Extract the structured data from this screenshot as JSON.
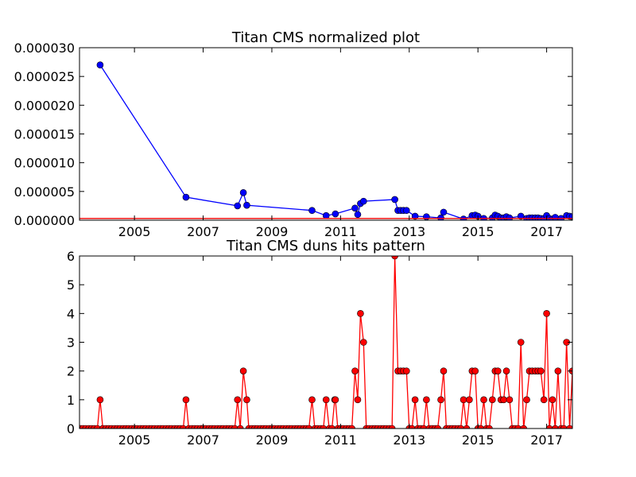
{
  "chart_data": [
    {
      "type": "line",
      "title": "Titan CMS normalized plot",
      "xlabel": "",
      "ylabel": "",
      "xlim": [
        2003.4,
        2017.75
      ],
      "ylim": [
        0,
        3e-05
      ],
      "x_ticks": [
        2005,
        2007,
        2009,
        2011,
        2013,
        2015,
        2017
      ],
      "x_tick_labels": [
        "2005",
        "2007",
        "2009",
        "2011",
        "2013",
        "2015",
        "2017"
      ],
      "y_ticks": [
        0,
        5e-06,
        1e-05,
        1.5e-05,
        2e-05,
        2.5e-05,
        3e-05
      ],
      "y_tick_labels": [
        "0.000000",
        "0.000005",
        "0.000010",
        "0.000015",
        "0.000020",
        "0.000025",
        "0.000030"
      ],
      "grid": false,
      "colors": {
        "series": "#0000ff",
        "trend": "#ff0000"
      },
      "series": [
        {
          "marker": "circle",
          "points": [
            [
              2004.0,
              2.7e-05
            ],
            [
              2006.5,
              4e-06
            ],
            [
              2008.0,
              2.5e-06
            ],
            [
              2008.17,
              4.8e-06
            ],
            [
              2008.27,
              2.6e-06
            ],
            [
              2010.17,
              1.7e-06
            ],
            [
              2010.58,
              8e-07
            ],
            [
              2010.85,
              1.1e-06
            ],
            [
              2011.42,
              2.1e-06
            ],
            [
              2011.5,
              1e-06
            ],
            [
              2011.58,
              2.9e-06
            ],
            [
              2011.67,
              3.3e-06
            ],
            [
              2012.58,
              3.6e-06
            ],
            [
              2012.67,
              1.7e-06
            ],
            [
              2012.75,
              1.7e-06
            ],
            [
              2012.83,
              1.7e-06
            ],
            [
              2012.92,
              1.7e-06
            ],
            [
              2013.17,
              7e-07
            ],
            [
              2013.5,
              6e-07
            ],
            [
              2013.92,
              4e-07
            ],
            [
              2014.0,
              1.4e-06
            ],
            [
              2014.58,
              2e-07
            ],
            [
              2014.83,
              8e-07
            ],
            [
              2014.92,
              9e-07
            ],
            [
              2015.0,
              7e-07
            ],
            [
              2015.17,
              3e-07
            ],
            [
              2015.42,
              4e-07
            ],
            [
              2015.5,
              9e-07
            ],
            [
              2015.58,
              7e-07
            ],
            [
              2015.67,
              4e-07
            ],
            [
              2015.75,
              4e-07
            ],
            [
              2015.83,
              6e-07
            ],
            [
              2015.92,
              4e-07
            ],
            [
              2016.25,
              7e-07
            ],
            [
              2016.42,
              3e-07
            ],
            [
              2016.5,
              4e-07
            ],
            [
              2016.58,
              4e-07
            ],
            [
              2016.67,
              4e-07
            ],
            [
              2016.75,
              4e-07
            ],
            [
              2016.83,
              3e-07
            ],
            [
              2016.92,
              3e-07
            ],
            [
              2017.0,
              8e-07
            ],
            [
              2017.08,
              3e-07
            ],
            [
              2017.17,
              2e-07
            ],
            [
              2017.25,
              5e-07
            ],
            [
              2017.42,
              3e-07
            ],
            [
              2017.58,
              8e-07
            ],
            [
              2017.67,
              7e-07
            ],
            [
              2017.75,
              6e-07
            ]
          ]
        },
        {
          "marker": "none",
          "points": [
            [
              2003.4,
              3e-07
            ],
            [
              2013.0,
              3e-07
            ],
            [
              2017.75,
              3e-07
            ]
          ]
        }
      ]
    },
    {
      "type": "line",
      "title": "Titan CMS duns hits pattern",
      "xlabel": "",
      "ylabel": "",
      "xlim": [
        2003.4,
        2017.75
      ],
      "ylim": [
        0,
        6
      ],
      "x_ticks": [
        2005,
        2007,
        2009,
        2011,
        2013,
        2015,
        2017
      ],
      "x_tick_labels": [
        "2005",
        "2007",
        "2009",
        "2011",
        "2013",
        "2015",
        "2017"
      ],
      "y_ticks": [
        0,
        1,
        2,
        3,
        4,
        5,
        6
      ],
      "y_tick_labels": [
        "0",
        "1",
        "2",
        "3",
        "4",
        "5",
        "6"
      ],
      "grid": false,
      "colors": {
        "series": "#ff0000"
      },
      "series": [
        {
          "marker": "circle",
          "points": [
            [
              2003.42,
              0
            ],
            [
              2003.5,
              0
            ],
            [
              2003.58,
              0
            ],
            [
              2003.67,
              0
            ],
            [
              2003.75,
              0
            ],
            [
              2003.83,
              0
            ],
            [
              2003.92,
              0
            ],
            [
              2004.0,
              1
            ],
            [
              2004.08,
              0
            ],
            [
              2004.17,
              0
            ],
            [
              2004.25,
              0
            ],
            [
              2004.33,
              0
            ],
            [
              2004.42,
              0
            ],
            [
              2004.5,
              0
            ],
            [
              2004.58,
              0
            ],
            [
              2004.67,
              0
            ],
            [
              2004.75,
              0
            ],
            [
              2004.83,
              0
            ],
            [
              2004.92,
              0
            ],
            [
              2005.0,
              0
            ],
            [
              2005.08,
              0
            ],
            [
              2005.17,
              0
            ],
            [
              2005.25,
              0
            ],
            [
              2005.33,
              0
            ],
            [
              2005.42,
              0
            ],
            [
              2005.5,
              0
            ],
            [
              2005.58,
              0
            ],
            [
              2005.67,
              0
            ],
            [
              2005.75,
              0
            ],
            [
              2005.83,
              0
            ],
            [
              2005.92,
              0
            ],
            [
              2006.0,
              0
            ],
            [
              2006.08,
              0
            ],
            [
              2006.17,
              0
            ],
            [
              2006.25,
              0
            ],
            [
              2006.33,
              0
            ],
            [
              2006.42,
              0
            ],
            [
              2006.5,
              1
            ],
            [
              2006.58,
              0
            ],
            [
              2006.67,
              0
            ],
            [
              2006.75,
              0
            ],
            [
              2006.83,
              0
            ],
            [
              2006.92,
              0
            ],
            [
              2007.0,
              0
            ],
            [
              2007.08,
              0
            ],
            [
              2007.17,
              0
            ],
            [
              2007.25,
              0
            ],
            [
              2007.33,
              0
            ],
            [
              2007.42,
              0
            ],
            [
              2007.5,
              0
            ],
            [
              2007.58,
              0
            ],
            [
              2007.67,
              0
            ],
            [
              2007.75,
              0
            ],
            [
              2007.83,
              0
            ],
            [
              2007.92,
              0
            ],
            [
              2008.0,
              1
            ],
            [
              2008.08,
              0
            ],
            [
              2008.17,
              2
            ],
            [
              2008.27,
              1
            ],
            [
              2008.33,
              0
            ],
            [
              2008.42,
              0
            ],
            [
              2008.5,
              0
            ],
            [
              2008.58,
              0
            ],
            [
              2008.67,
              0
            ],
            [
              2008.75,
              0
            ],
            [
              2008.83,
              0
            ],
            [
              2008.92,
              0
            ],
            [
              2009.0,
              0
            ],
            [
              2009.08,
              0
            ],
            [
              2009.17,
              0
            ],
            [
              2009.25,
              0
            ],
            [
              2009.33,
              0
            ],
            [
              2009.42,
              0
            ],
            [
              2009.5,
              0
            ],
            [
              2009.58,
              0
            ],
            [
              2009.67,
              0
            ],
            [
              2009.75,
              0
            ],
            [
              2009.83,
              0
            ],
            [
              2009.92,
              0
            ],
            [
              2010.0,
              0
            ],
            [
              2010.08,
              0
            ],
            [
              2010.17,
              1
            ],
            [
              2010.25,
              0
            ],
            [
              2010.33,
              0
            ],
            [
              2010.42,
              0
            ],
            [
              2010.5,
              0
            ],
            [
              2010.58,
              1
            ],
            [
              2010.67,
              0
            ],
            [
              2010.75,
              0
            ],
            [
              2010.83,
              1
            ],
            [
              2010.85,
              1
            ],
            [
              2010.92,
              0
            ],
            [
              2011.0,
              0
            ],
            [
              2011.08,
              0
            ],
            [
              2011.17,
              0
            ],
            [
              2011.25,
              0
            ],
            [
              2011.33,
              0
            ],
            [
              2011.42,
              2
            ],
            [
              2011.5,
              1
            ],
            [
              2011.58,
              4
            ],
            [
              2011.67,
              3
            ],
            [
              2011.75,
              0
            ],
            [
              2011.83,
              0
            ],
            [
              2011.92,
              0
            ],
            [
              2012.0,
              0
            ],
            [
              2012.08,
              0
            ],
            [
              2012.17,
              0
            ],
            [
              2012.25,
              0
            ],
            [
              2012.33,
              0
            ],
            [
              2012.42,
              0
            ],
            [
              2012.5,
              0
            ],
            [
              2012.58,
              6
            ],
            [
              2012.67,
              2
            ],
            [
              2012.75,
              2
            ],
            [
              2012.83,
              2
            ],
            [
              2012.92,
              2
            ],
            [
              2013.0,
              0
            ],
            [
              2013.08,
              0
            ],
            [
              2013.17,
              1
            ],
            [
              2013.25,
              0
            ],
            [
              2013.33,
              0
            ],
            [
              2013.42,
              0
            ],
            [
              2013.5,
              1
            ],
            [
              2013.58,
              0
            ],
            [
              2013.67,
              0
            ],
            [
              2013.75,
              0
            ],
            [
              2013.83,
              0
            ],
            [
              2013.92,
              1
            ],
            [
              2014.0,
              2
            ],
            [
              2014.08,
              0
            ],
            [
              2014.17,
              0
            ],
            [
              2014.25,
              0
            ],
            [
              2014.33,
              0
            ],
            [
              2014.42,
              0
            ],
            [
              2014.5,
              0
            ],
            [
              2014.58,
              1
            ],
            [
              2014.67,
              0
            ],
            [
              2014.75,
              1
            ],
            [
              2014.83,
              2
            ],
            [
              2014.92,
              2
            ],
            [
              2015.0,
              0
            ],
            [
              2015.08,
              0
            ],
            [
              2015.17,
              1
            ],
            [
              2015.25,
              0
            ],
            [
              2015.33,
              0
            ],
            [
              2015.42,
              1
            ],
            [
              2015.5,
              2
            ],
            [
              2015.58,
              2
            ],
            [
              2015.67,
              1
            ],
            [
              2015.75,
              1
            ],
            [
              2015.83,
              2
            ],
            [
              2015.92,
              1
            ],
            [
              2016.0,
              0
            ],
            [
              2016.08,
              0
            ],
            [
              2016.17,
              0
            ],
            [
              2016.25,
              3
            ],
            [
              2016.33,
              0
            ],
            [
              2016.42,
              1
            ],
            [
              2016.5,
              2
            ],
            [
              2016.58,
              2
            ],
            [
              2016.67,
              2
            ],
            [
              2016.75,
              2
            ],
            [
              2016.83,
              2
            ],
            [
              2016.92,
              1
            ],
            [
              2017.0,
              4
            ],
            [
              2017.08,
              0
            ],
            [
              2017.17,
              1
            ],
            [
              2017.25,
              0
            ],
            [
              2017.33,
              2
            ],
            [
              2017.42,
              0
            ],
            [
              2017.5,
              0
            ],
            [
              2017.58,
              3
            ],
            [
              2017.67,
              0
            ],
            [
              2017.75,
              2
            ]
          ]
        }
      ]
    }
  ]
}
